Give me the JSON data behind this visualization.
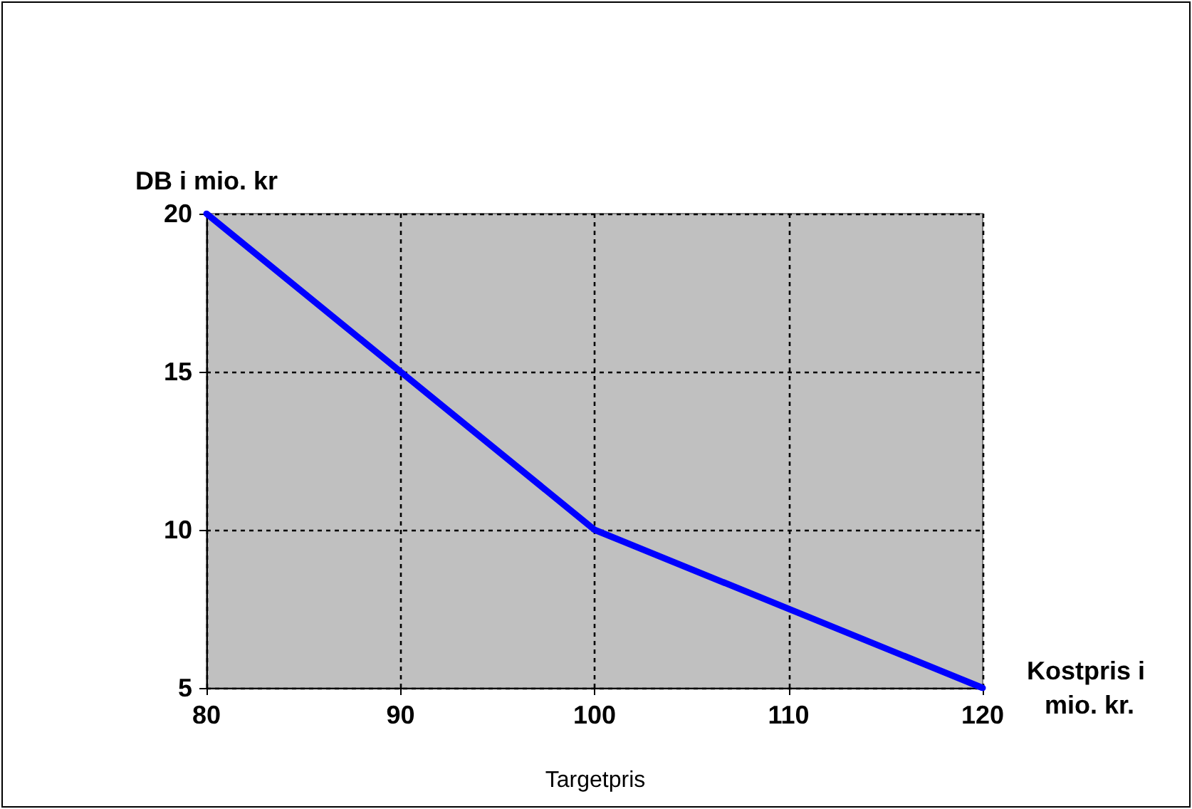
{
  "chart_data": {
    "type": "line",
    "xlabel": "Kostpris i mio. kr.",
    "ylabel": "DB i mio. kr",
    "x": [
      80,
      90,
      100,
      120
    ],
    "series": [
      {
        "color": "#0000ff",
        "values": [
          20,
          15,
          10,
          5
        ]
      }
    ],
    "xlim": [
      80,
      120
    ],
    "xticks": [
      80,
      90,
      100,
      110,
      120
    ],
    "ylim": [
      5,
      20
    ],
    "yticks": [
      5,
      10,
      15,
      20
    ],
    "grid": true,
    "marker": "none",
    "line_style": "solid",
    "annotations": [
      "Targetpris"
    ]
  }
}
